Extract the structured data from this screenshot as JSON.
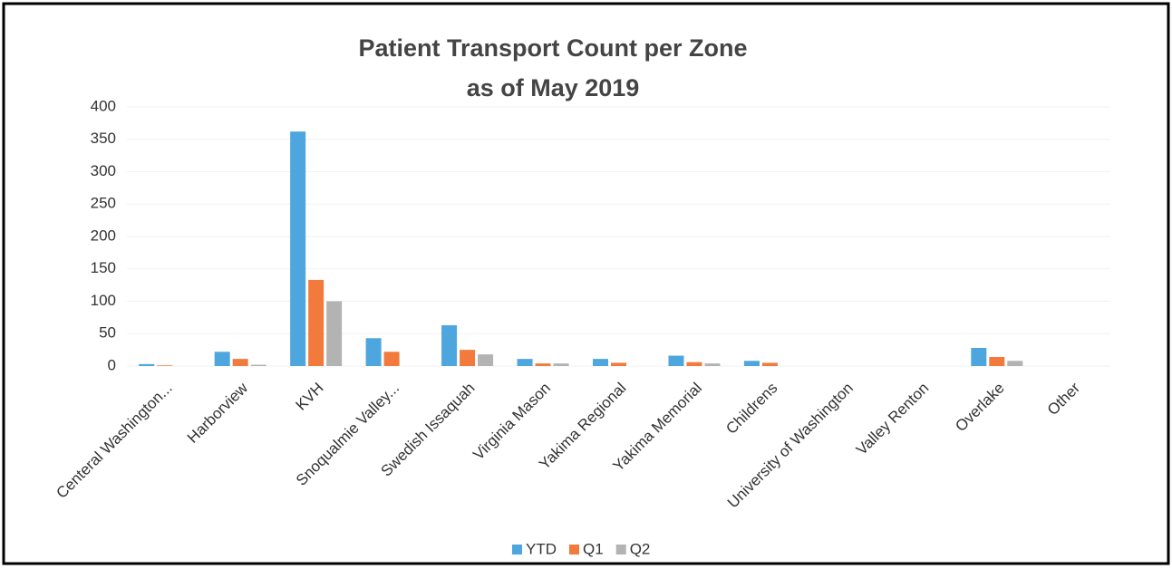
{
  "chart_data": {
    "type": "bar",
    "title": "Patient Transport Count per Zone",
    "subtitle": "as of May 2019",
    "categories": [
      "Centeral Washington...",
      "Harborview",
      "KVH",
      "Snoqualmie Valley...",
      "Swedish Issaquah",
      "Virginia Mason",
      "Yakima Regional",
      "Yakima Memorial",
      "Childrens",
      "University of Washington",
      "Valley Renton",
      "Overlake",
      "Other"
    ],
    "series": [
      {
        "name": "YTD",
        "color": "#4ea6de",
        "values": [
          3,
          22,
          362,
          43,
          63,
          11,
          11,
          16,
          8,
          0,
          0,
          28,
          0
        ]
      },
      {
        "name": "Q1",
        "color": "#f27a3c",
        "values": [
          1,
          11,
          133,
          22,
          25,
          4,
          5,
          6,
          5,
          0,
          0,
          14,
          0
        ]
      },
      {
        "name": "Q2",
        "color": "#b3b3b3",
        "values": [
          0,
          2,
          100,
          0,
          18,
          4,
          0,
          4,
          0,
          0,
          0,
          8,
          0
        ]
      }
    ],
    "ylim": [
      0,
      400
    ],
    "yticks": [
      0,
      50,
      100,
      150,
      200,
      250,
      300,
      350,
      400
    ],
    "grid": true,
    "legend": "bottom"
  }
}
